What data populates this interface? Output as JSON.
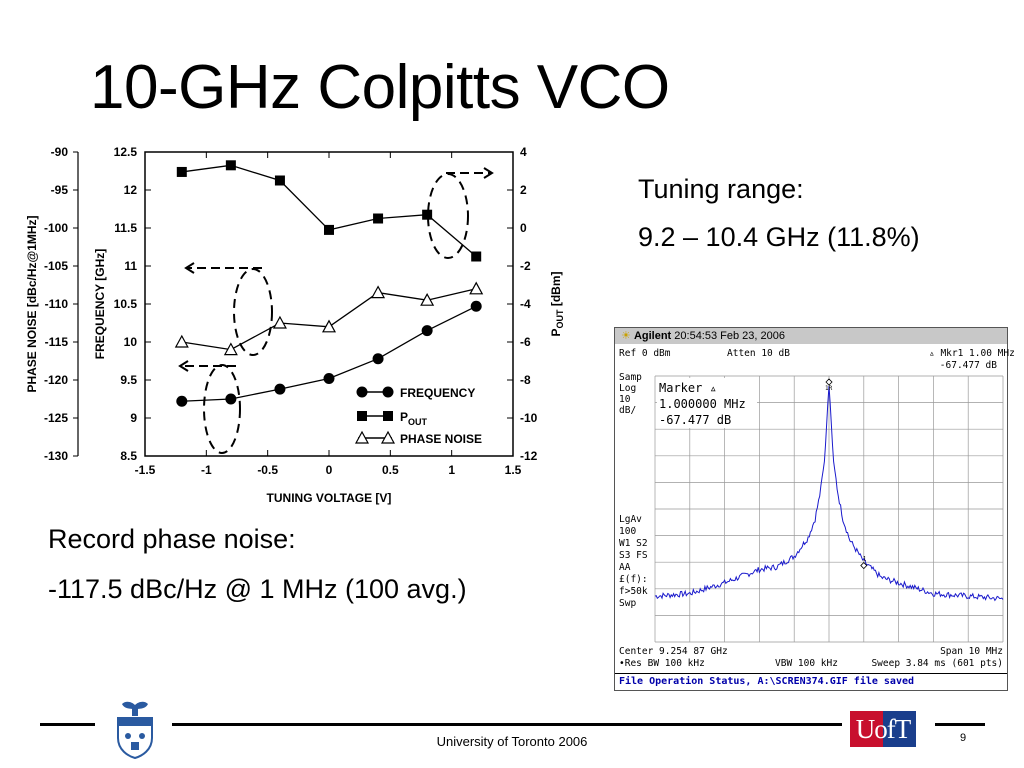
{
  "slide": {
    "title": "10-GHz Colpitts VCO",
    "tuning_label": "Tuning range:",
    "tuning_value": "9.2 – 10.4 GHz (11.8%)",
    "record_label": "Record phase noise:",
    "record_value": "-117.5 dBc/Hz @ 1 MHz (100 avg.)",
    "footer": "University of Toronto 2006",
    "page_number": "9",
    "logo_right_text": "UofT",
    "colors": {
      "series": "#000000",
      "trace": "#1a1acc",
      "status": "#0000aa",
      "uoft_red": "#c8102e",
      "uoft_blue": "#1a3e8c"
    }
  },
  "chart_data": [
    {
      "type": "line",
      "xlabel": "TUNING VOLTAGE [V]",
      "ylabel_left_outer": "PHASE NOISE [dBc/Hz@1MHz]",
      "ylabel_left_inner": "FREQUENCY [GHz]",
      "ylabel_right": "POUT [dBm]",
      "ylabel_right_main": "P",
      "ylabel_right_sub": "OUT",
      "ylabel_right_tail": " [dBm]",
      "xlim": [
        -1.5,
        1.5
      ],
      "x_ticks": [
        "-1.5",
        "-1",
        "-0.5",
        "0",
        "0.5",
        "1",
        "1.5"
      ],
      "freq_ticks": [
        "8.5",
        "9",
        "9.5",
        "10",
        "10.5",
        "11",
        "11.5",
        "12",
        "12.5"
      ],
      "pn_ticks": [
        "-130",
        "-125",
        "-120",
        "-115",
        "-110",
        "-105",
        "-100",
        "-95",
        "-90"
      ],
      "pout_ticks": [
        "-12",
        "-10",
        "-8",
        "-6",
        "-4",
        "-2",
        "0",
        "2",
        "4"
      ],
      "freq_lim": [
        8.5,
        12.5
      ],
      "pn_lim": [
        -130,
        -90
      ],
      "pout_lim": [
        -12,
        4
      ],
      "x": [
        -1.2,
        -0.8,
        -0.4,
        0,
        0.4,
        0.8,
        1.2
      ],
      "series": [
        {
          "name": "FREQUENCY",
          "marker": "circle",
          "axis": "frequency",
          "values": [
            9.22,
            9.25,
            9.38,
            9.52,
            9.78,
            10.15,
            10.47
          ]
        },
        {
          "name": "P",
          "name_sub": "OUT",
          "marker": "square",
          "axis": "pout",
          "values": [
            2.95,
            3.3,
            2.5,
            -0.1,
            0.5,
            0.7,
            -1.5
          ]
        },
        {
          "name": "PHASE NOISE",
          "marker": "triangle",
          "axis": "phase_noise",
          "values": [
            -115,
            -116,
            -112.5,
            -113,
            -108.5,
            -109.5,
            -108
          ]
        }
      ]
    },
    {
      "type": "line",
      "brand": "Agilent",
      "time": "20:54:53",
      "date": "Feb 23, 2006",
      "ref": "Ref 0 dBm",
      "atten": "Atten 10 dB",
      "marker_header": "Mkr1 1.00 MHz",
      "marker_value_header": "-67.477 dB",
      "marker_box_title": "Marker",
      "marker_freq": "1.000000 MHz",
      "marker_level": "-67.477 dB",
      "left_labels_top": [
        "Samp",
        "Log",
        "10",
        "dB/"
      ],
      "left_labels_bottom": [
        "LgAv",
        "100",
        "W1  S2",
        "S3  FS",
        "   AA",
        "£(f):",
        "f>50k",
        "Swp"
      ],
      "center": "Center 9.254 87 GHz",
      "span": "Span 10 MHz",
      "res_bw": "•Res BW 100 kHz",
      "vbw": "VBW 100 kHz",
      "sweep": "Sweep 3.84 ms (601 pts)",
      "status": "File Operation Status, A:\\SCREN374.GIF file saved",
      "marker_labels": [
        "1R",
        "1"
      ],
      "offset_mhz": [
        -5,
        -4,
        -3,
        -2,
        -1.5,
        -1,
        -0.6,
        -0.4,
        -0.25,
        -0.12,
        -0.05,
        0,
        0.05,
        0.12,
        0.25,
        0.4,
        0.6,
        1,
        1.5,
        2,
        3,
        4,
        5
      ],
      "level_db": [
        -79,
        -78,
        -74,
        -69,
        -68,
        -64,
        -57,
        -50,
        -40,
        -27,
        -10,
        0,
        -10,
        -27,
        -40,
        -50,
        -58,
        -66,
        -72,
        -74,
        -78,
        -79,
        -80
      ]
    }
  ]
}
